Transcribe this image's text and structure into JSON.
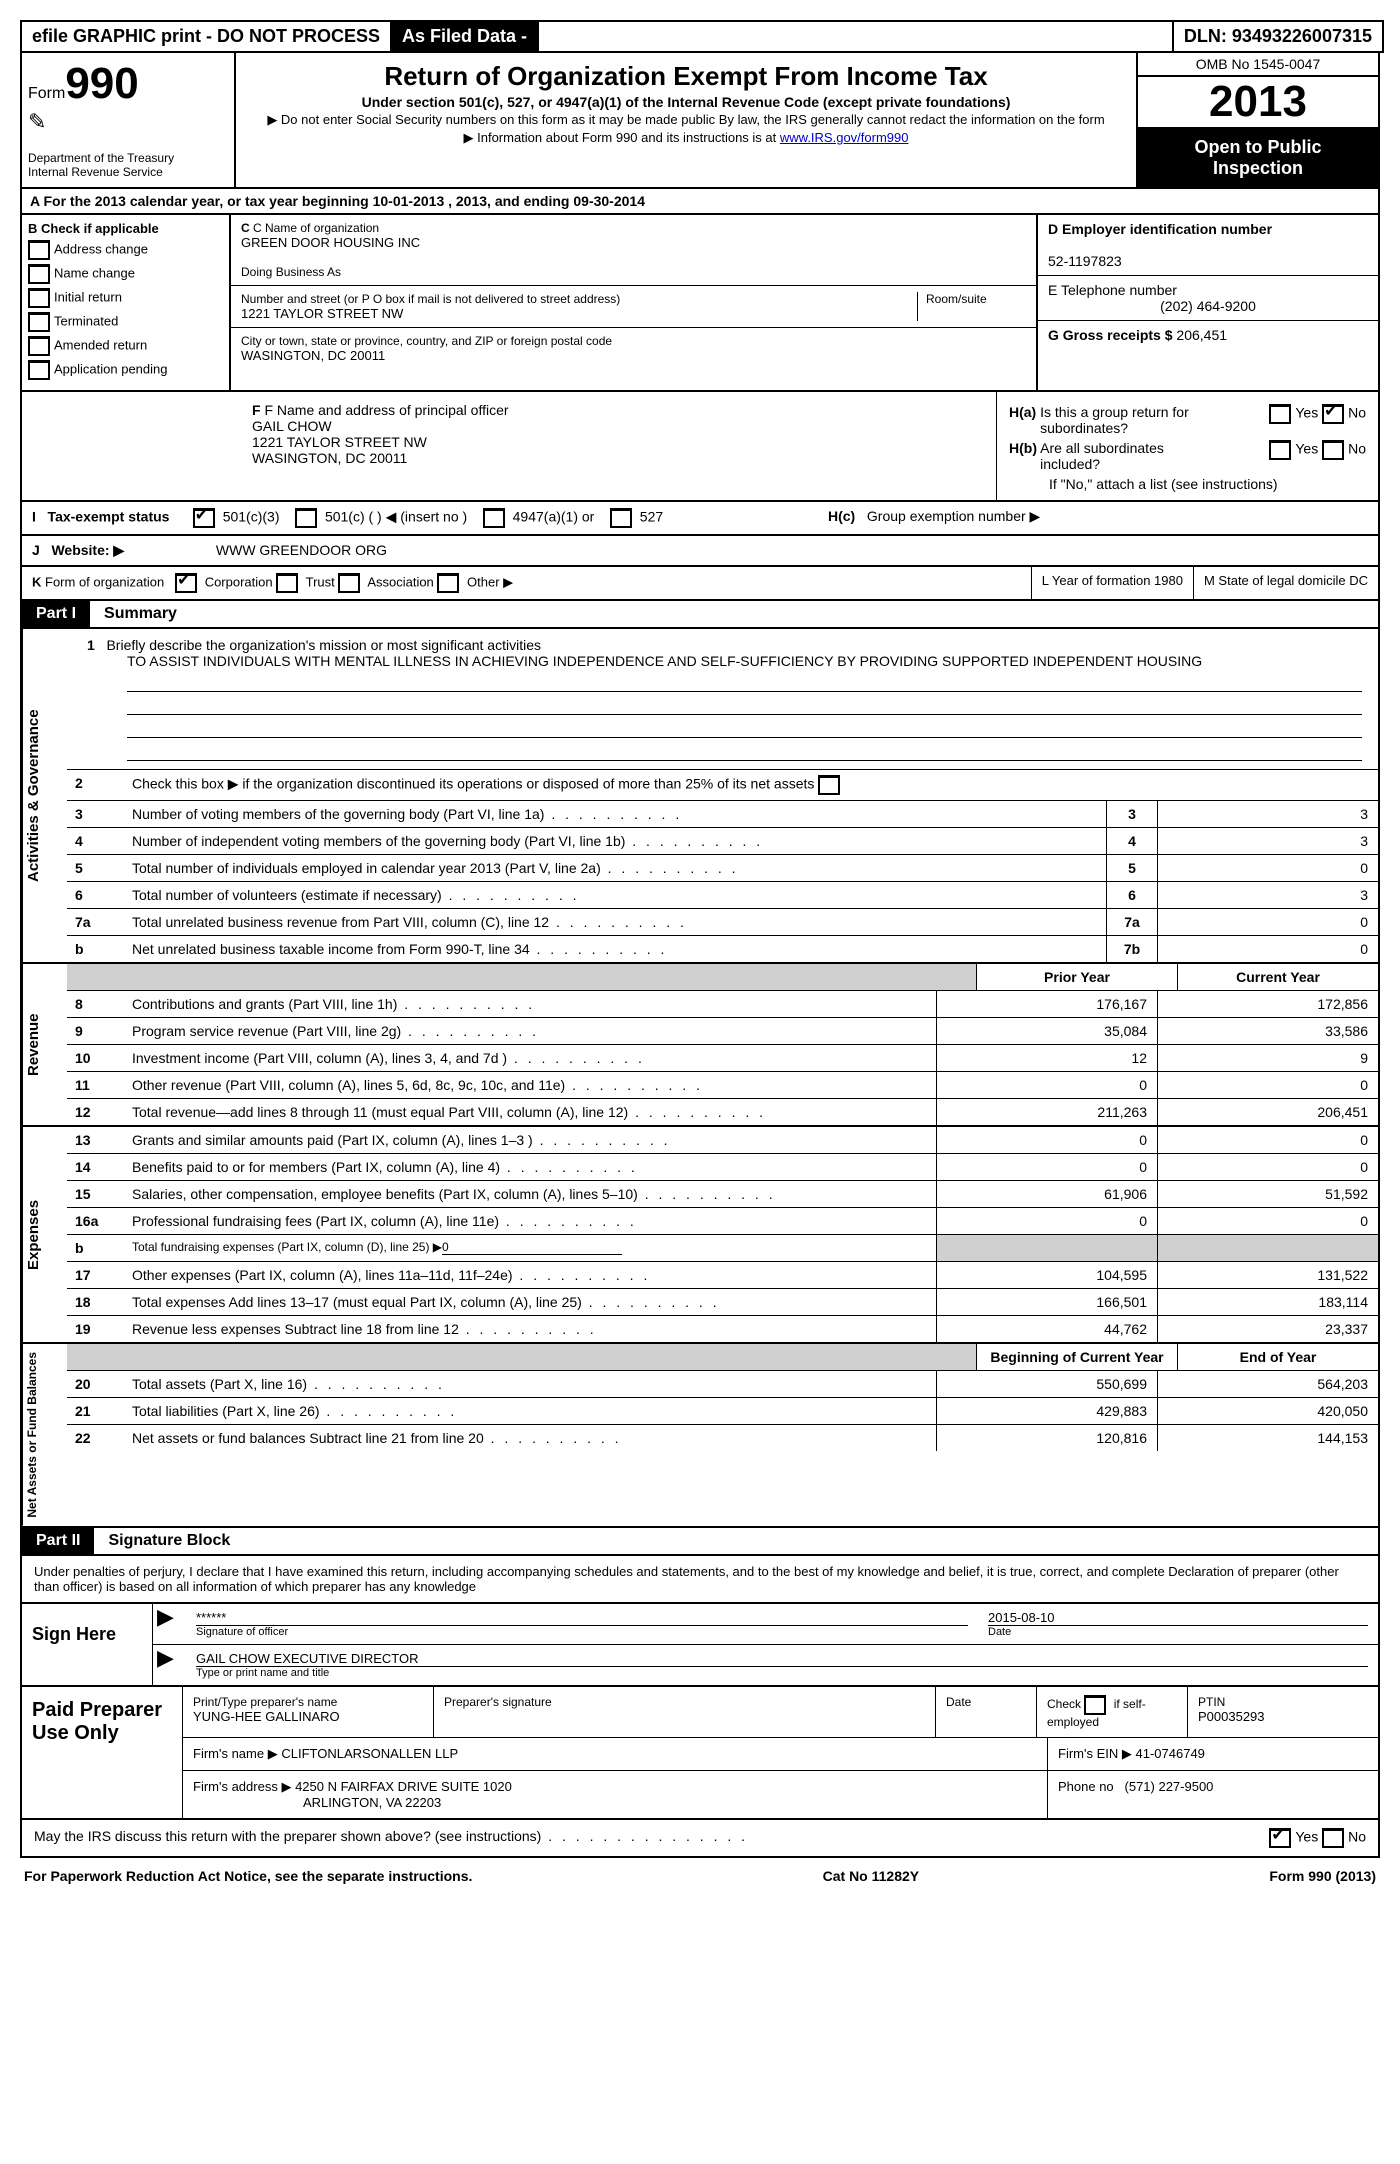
{
  "topbar": {
    "efile": "efile GRAPHIC print - DO NOT PROCESS",
    "asFiled": "As Filed Data -",
    "dlnLabel": "DLN:",
    "dln": "93493226007315"
  },
  "header": {
    "formLabel": "Form",
    "formNumber": "990",
    "dept1": "Department of the Treasury",
    "dept2": "Internal Revenue Service",
    "title": "Return of Organization Exempt From Income Tax",
    "subtitle": "Under section 501(c), 527, or 4947(a)(1) of the Internal Revenue Code (except private foundations)",
    "line1": "▶ Do not enter Social Security numbers on this form as it may be made public  By law, the IRS generally cannot redact the information on the form",
    "line2pre": "▶ Information about Form 990 and its instructions is at ",
    "line2link": "www.IRS.gov/form990",
    "omb": "OMB No  1545-0047",
    "year": "2013",
    "openPublic1": "Open to Public",
    "openPublic2": "Inspection"
  },
  "rowA": "A  For the 2013 calendar year, or tax year beginning 10-01-2013     , 2013, and ending 09-30-2014",
  "sectionB": {
    "title": "B  Check if applicable",
    "items": [
      "Address change",
      "Name change",
      "Initial return",
      "Terminated",
      "Amended return",
      "Application pending"
    ]
  },
  "sectionC": {
    "nameLabel": "C Name of organization",
    "name": "GREEN DOOR HOUSING INC",
    "dba": "Doing Business As",
    "streetLabel": "Number and street (or P O  box if mail is not delivered to street address)",
    "roomLabel": "Room/suite",
    "street": "1221 TAYLOR STREET NW",
    "cityLabel": "City or town, state or province, country, and ZIP or foreign postal code",
    "city": "WASINGTON, DC  20011"
  },
  "sectionD": {
    "einLabel": "D Employer identification number",
    "ein": "52-1197823",
    "telLabel": "E Telephone number",
    "tel": "(202) 464-9200",
    "grossLabel": "G Gross receipts $",
    "gross": "206,451"
  },
  "sectionF": {
    "label": "F  Name and address of principal officer",
    "name": "GAIL CHOW",
    "street": "1221 TAYLOR STREET NW",
    "city": "WASINGTON, DC  20011"
  },
  "sectionH": {
    "ha": "H(a)  Is this a group return for subordinates?",
    "hb": "H(b)  Are all subordinates included?",
    "hbNote": "If \"No,\" attach a list  (see instructions)",
    "hc": "H(c)   Group exemption number ▶",
    "yes": "Yes",
    "no": "No"
  },
  "rowI": {
    "label": "I   Tax-exempt status",
    "opt1": "501(c)(3)",
    "opt2": "501(c) (   ) ◀ (insert no )",
    "opt3": "4947(a)(1) or",
    "opt4": "527"
  },
  "rowJ": {
    "label": "J   Website: ▶",
    "value": "WWW GREENDOOR ORG"
  },
  "rowK": {
    "k1label": "K Form of organization",
    "corp": "Corporation",
    "trust": "Trust",
    "assoc": "Association",
    "other": "Other ▶",
    "k2": "L Year of formation  1980",
    "k3": "M State of legal domicile  DC"
  },
  "partI": {
    "partNo": "Part I",
    "title": "Summary"
  },
  "summary": {
    "vtab1": "Activities & Governance",
    "vtab2": "Revenue",
    "vtab3": "Expenses",
    "vtab4": "Net Assets or Fund Balances",
    "line1Label": "Briefly describe the organization's mission or most significant activities",
    "line1Text": "TO ASSIST INDIVIDUALS WITH MENTAL ILLNESS IN ACHIEVING INDEPENDENCE AND SELF-SUFFICIENCY BY PROVIDING SUPPORTED INDEPENDENT HOUSING",
    "line2": "Check this box ▶     if the organization discontinued its operations or disposed of more than 25% of its net assets",
    "priorYear": "Prior Year",
    "currentYear": "Current Year",
    "begYear": "Beginning of Current Year",
    "endYear": "End of Year",
    "rows_gov": [
      {
        "n": "3",
        "desc": "Number of voting members of the governing body (Part VI, line 1a)",
        "box": "3",
        "val": "3"
      },
      {
        "n": "4",
        "desc": "Number of independent voting members of the governing body (Part VI, line 1b)",
        "box": "4",
        "val": "3"
      },
      {
        "n": "5",
        "desc": "Total number of individuals employed in calendar year 2013 (Part V, line 2a)",
        "box": "5",
        "val": "0"
      },
      {
        "n": "6",
        "desc": "Total number of volunteers (estimate if necessary)",
        "box": "6",
        "val": "3"
      },
      {
        "n": "7a",
        "desc": "Total unrelated business revenue from Part VIII, column (C), line 12",
        "box": "7a",
        "val": "0"
      },
      {
        "n": "b",
        "desc": "Net unrelated business taxable income from Form 990-T, line 34",
        "box": "7b",
        "val": "0"
      }
    ],
    "rows_rev": [
      {
        "n": "8",
        "desc": "Contributions and grants (Part VIII, line 1h)",
        "py": "176,167",
        "cy": "172,856"
      },
      {
        "n": "9",
        "desc": "Program service revenue (Part VIII, line 2g)",
        "py": "35,084",
        "cy": "33,586"
      },
      {
        "n": "10",
        "desc": "Investment income (Part VIII, column (A), lines 3, 4, and 7d )",
        "py": "12",
        "cy": "9"
      },
      {
        "n": "11",
        "desc": "Other revenue (Part VIII, column (A), lines 5, 6d, 8c, 9c, 10c, and 11e)",
        "py": "0",
        "cy": "0"
      },
      {
        "n": "12",
        "desc": "Total revenue—add lines 8 through 11 (must equal Part VIII, column (A), line 12)",
        "py": "211,263",
        "cy": "206,451"
      }
    ],
    "rows_exp": [
      {
        "n": "13",
        "desc": "Grants and similar amounts paid (Part IX, column (A), lines 1–3 )",
        "py": "0",
        "cy": "0"
      },
      {
        "n": "14",
        "desc": "Benefits paid to or for members (Part IX, column (A), line 4)",
        "py": "0",
        "cy": "0"
      },
      {
        "n": "15",
        "desc": "Salaries, other compensation, employee benefits (Part IX, column (A), lines 5–10)",
        "py": "61,906",
        "cy": "51,592"
      },
      {
        "n": "16a",
        "desc": "Professional fundraising fees (Part IX, column (A), line 11e)",
        "py": "0",
        "cy": "0"
      },
      {
        "n": "b",
        "desc": "Total fundraising expenses (Part IX, column (D), line 25) ▶",
        "py": "",
        "cy": "",
        "gray": true,
        "under": "0"
      },
      {
        "n": "17",
        "desc": "Other expenses (Part IX, column (A), lines 11a–11d, 11f–24e)",
        "py": "104,595",
        "cy": "131,522"
      },
      {
        "n": "18",
        "desc": "Total expenses  Add lines 13–17 (must equal Part IX, column (A), line 25)",
        "py": "166,501",
        "cy": "183,114"
      },
      {
        "n": "19",
        "desc": "Revenue less expenses  Subtract line 18 from line 12",
        "py": "44,762",
        "cy": "23,337"
      }
    ],
    "rows_net": [
      {
        "n": "20",
        "desc": "Total assets (Part X, line 16)",
        "py": "550,699",
        "cy": "564,203"
      },
      {
        "n": "21",
        "desc": "Total liabilities (Part X, line 26)",
        "py": "429,883",
        "cy": "420,050"
      },
      {
        "n": "22",
        "desc": "Net assets or fund balances  Subtract line 21 from line 20",
        "py": "120,816",
        "cy": "144,153"
      }
    ]
  },
  "partII": {
    "partNo": "Part II",
    "title": "Signature Block"
  },
  "sigText": "Under penalties of perjury, I declare that I have examined this return, including accompanying schedules and statements, and to the best of my knowledge and belief, it is true, correct, and complete  Declaration of preparer (other than officer) is based on all information of which preparer has any knowledge",
  "signHere": {
    "label": "Sign Here",
    "stars": "******",
    "sigOfficer": "Signature of officer",
    "date": "2015-08-10",
    "dateLabel": "Date",
    "name": "GAIL CHOW  EXECUTIVE DIRECTOR",
    "nameLabel": "Type or print name and title"
  },
  "preparer": {
    "label": "Paid Preparer Use Only",
    "h1": "Print/Type preparer's name",
    "h1v": "YUNG-HEE GALLINARO",
    "h2": "Preparer's signature",
    "h3": "Date",
    "h4a": "Check",
    "h4b": "if self-employed",
    "h5": "PTIN",
    "h5v": "P00035293",
    "firmNameLabel": "Firm's name     ▶",
    "firmName": "CLIFTONLARSONALLEN LLP",
    "firmEinLabel": "Firm's EIN ▶",
    "firmEin": "41-0746749",
    "firmAddrLabel": "Firm's address ▶",
    "firmAddr1": "4250 N FAIRFAX DRIVE SUITE 1020",
    "firmAddr2": "ARLINGTON, VA  22203",
    "phoneLabel": "Phone no",
    "phone": "(571) 227-9500"
  },
  "irsDiscuss": {
    "text": "May the IRS discuss this return with the preparer shown above? (see instructions)",
    "yes": "Yes",
    "no": "No"
  },
  "footer": {
    "left": "For Paperwork Reduction Act Notice, see the separate instructions.",
    "mid": "Cat No  11282Y",
    "right": "Form 990 (2013)"
  }
}
